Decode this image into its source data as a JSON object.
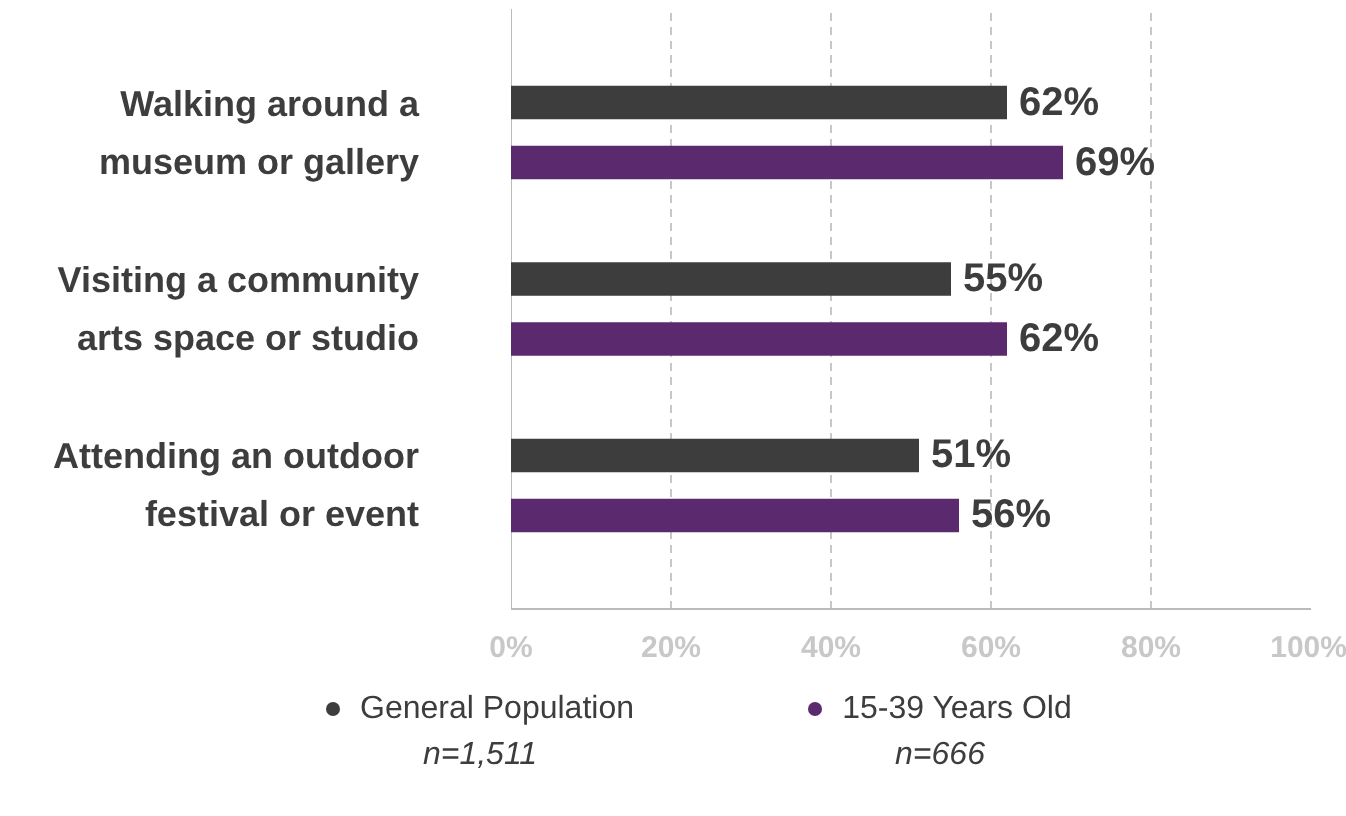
{
  "chart_data": {
    "type": "bar",
    "orientation": "horizontal",
    "categories": [
      "Walking around a museum or gallery",
      "Visiting a community arts space or studio",
      "Attending an outdoor festival or event"
    ],
    "series": [
      {
        "name": "General Population",
        "color": "#3d3d3d",
        "values": [
          62,
          55,
          51
        ],
        "value_labels": [
          "62%",
          "55%",
          "51%"
        ]
      },
      {
        "name": "15-39 Years Old",
        "color": "#5b2a6e",
        "values": [
          69,
          62,
          56
        ],
        "value_labels": [
          "69%",
          "62%",
          "56%"
        ]
      }
    ],
    "xlim": [
      0,
      100
    ],
    "xticks": [
      {
        "value": 0,
        "label": "0%"
      },
      {
        "value": 20,
        "label": "20%"
      },
      {
        "value": 40,
        "label": "40%"
      },
      {
        "value": 60,
        "label": "60%"
      },
      {
        "value": 80,
        "label": "80%"
      },
      {
        "value": 100,
        "label": "100%"
      }
    ],
    "grid": "x",
    "legend": "bottom",
    "annotations": [
      "n=1,511",
      "n=666"
    ]
  }
}
